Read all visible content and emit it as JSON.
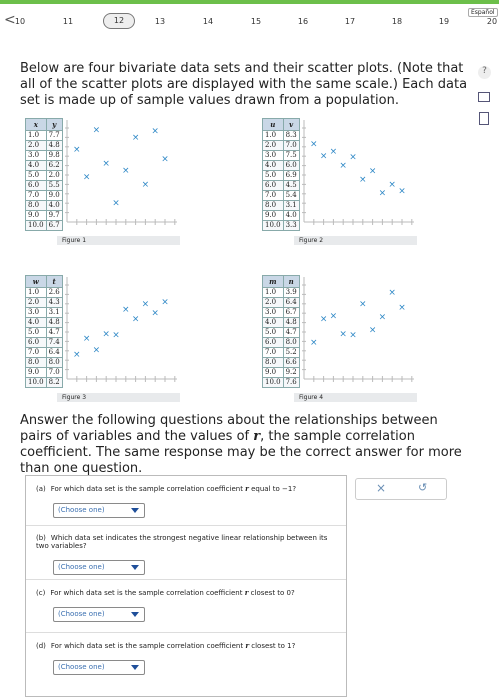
{
  "nav": {
    "language": "Español",
    "pages": [
      "10",
      "11",
      "12",
      "13",
      "14",
      "15",
      "16",
      "17",
      "18",
      "19",
      "20"
    ]
  },
  "intro": "Below are four bivariate data sets and their scatter plots. (Note that all of the scatter plots are displayed with the same scale.) Each data set is made up of sample values drawn from a population.",
  "figures": [
    {
      "label": "Figure 1",
      "headers": [
        "x",
        "y"
      ],
      "rows": [
        [
          "1.0",
          "7.7"
        ],
        [
          "2.0",
          "4.8"
        ],
        [
          "3.0",
          "9.8"
        ],
        [
          "4.0",
          "6.2"
        ],
        [
          "5.0",
          "2.0"
        ],
        [
          "6.0",
          "5.5"
        ],
        [
          "7.0",
          "9.0"
        ],
        [
          "8.0",
          "4.0"
        ],
        [
          "9.0",
          "9.7"
        ],
        [
          "10.0",
          "6.7"
        ]
      ]
    },
    {
      "label": "Figure 2",
      "headers": [
        "u",
        "v"
      ],
      "rows": [
        [
          "1.0",
          "8.3"
        ],
        [
          "2.0",
          "7.0"
        ],
        [
          "3.0",
          "7.5"
        ],
        [
          "4.0",
          "6.0"
        ],
        [
          "5.0",
          "6.9"
        ],
        [
          "6.0",
          "4.5"
        ],
        [
          "7.0",
          "5.4"
        ],
        [
          "8.0",
          "3.1"
        ],
        [
          "9.0",
          "4.0"
        ],
        [
          "10.0",
          "3.3"
        ]
      ]
    },
    {
      "label": "Figure 3",
      "headers": [
        "w",
        "t"
      ],
      "rows": [
        [
          "1.0",
          "2.6"
        ],
        [
          "2.0",
          "4.3"
        ],
        [
          "3.0",
          "3.1"
        ],
        [
          "4.0",
          "4.8"
        ],
        [
          "5.0",
          "4.7"
        ],
        [
          "6.0",
          "7.4"
        ],
        [
          "7.0",
          "6.4"
        ],
        [
          "8.0",
          "8.0"
        ],
        [
          "9.0",
          "7.0"
        ],
        [
          "10.0",
          "8.2"
        ]
      ]
    },
    {
      "label": "Figure 4",
      "headers": [
        "m",
        "n"
      ],
      "rows": [
        [
          "1.0",
          "3.9"
        ],
        [
          "2.0",
          "6.4"
        ],
        [
          "3.0",
          "6.7"
        ],
        [
          "4.0",
          "4.8"
        ],
        [
          "5.0",
          "4.7"
        ],
        [
          "6.0",
          "8.0"
        ],
        [
          "7.0",
          "5.2"
        ],
        [
          "8.0",
          "6.6"
        ],
        [
          "9.0",
          "9.2"
        ],
        [
          "10.0",
          "7.6"
        ]
      ]
    }
  ],
  "instructions": [
    "Answer the following questions about the relationships between pairs of variables and the values of ",
    "r",
    ", the sample correlation coefficient. The same response may be the correct answer for more than one question."
  ],
  "questions": [
    {
      "label": "(a)",
      "text": [
        "For which data set is the sample correlation coefficient ",
        "r",
        " equal to −1?"
      ],
      "choice": "(Choose one)"
    },
    {
      "label": "(b)",
      "text": [
        "Which data set indicates the strongest negative linear relationship between its two variables?"
      ],
      "choice": "(Choose one)"
    },
    {
      "label": "(c)",
      "text": [
        "For which data set is the sample correlation coefficient ",
        "r",
        " closest to 0?"
      ],
      "choice": "(Choose one)"
    },
    {
      "label": "(d)",
      "text": [
        "For which data set is the sample correlation coefficient ",
        "r",
        " closest to 1?"
      ],
      "choice": "(Choose one)"
    }
  ]
}
